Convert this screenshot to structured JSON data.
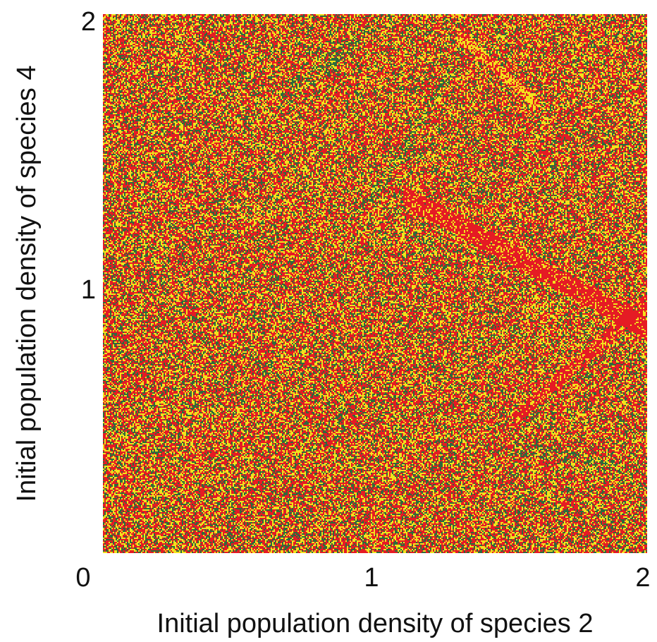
{
  "chart_data": {
    "type": "heatmap",
    "title": "",
    "xlabel": "Initial population density of species 2",
    "ylabel": "Initial population density of species 4",
    "xlim": [
      0,
      2
    ],
    "ylim": [
      0,
      2
    ],
    "xticks": [
      "0",
      "1",
      "2"
    ],
    "yticks": [
      "1",
      "2"
    ],
    "grid": false,
    "legend": "none",
    "description_classes": [
      "red",
      "yellow",
      "dark-green"
    ],
    "colors": {
      "red": "#e51b24",
      "yellow": "#f2e21c",
      "dark_green": "#2e6a3c"
    },
    "class_proportions": {
      "red": 0.45,
      "yellow": 0.3,
      "dark_green": 0.25
    }
  }
}
